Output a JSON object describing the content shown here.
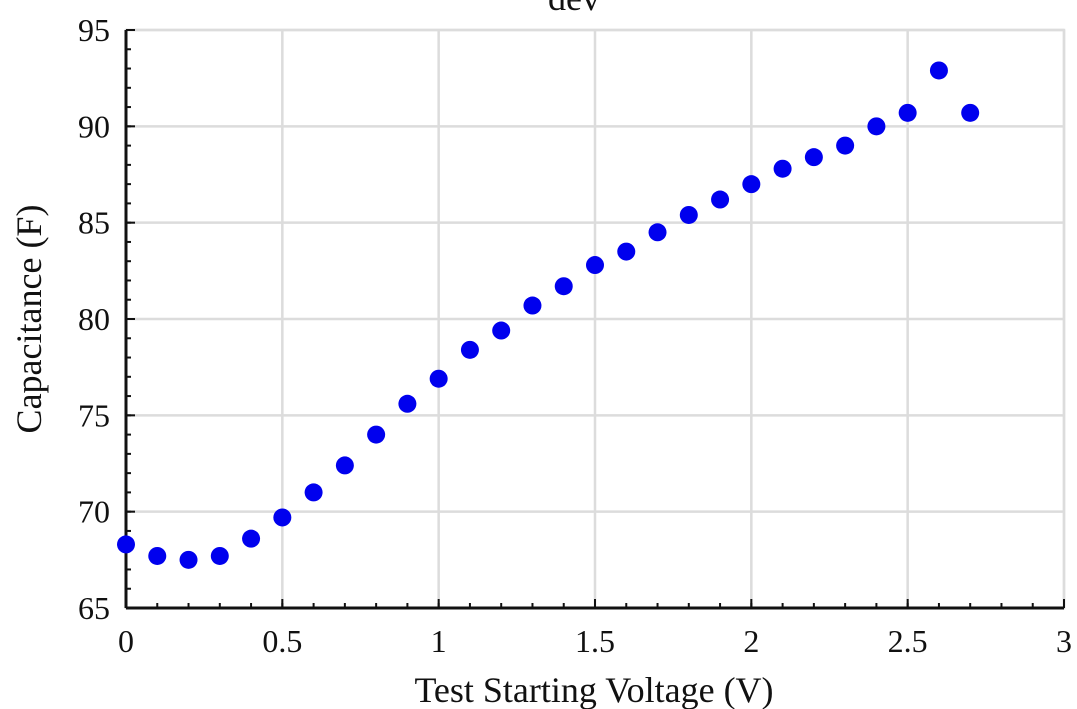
{
  "chart_data": {
    "type": "scatter",
    "title": "dev",
    "xlabel": "Test Starting Voltage (V)",
    "ylabel": "Capacitance (F)",
    "xlim": [
      0,
      3
    ],
    "ylim": [
      65,
      95
    ],
    "xticks": [
      "0",
      "0.5",
      "1",
      "1.5",
      "2",
      "2.5",
      "3"
    ],
    "yticks": [
      "65",
      "70",
      "75",
      "80",
      "85",
      "90",
      "95"
    ],
    "grid": true,
    "marker_color": "#0000ee",
    "series": [
      {
        "x": [
          0,
          0.1,
          0.2,
          0.3,
          0.4,
          0.5,
          0.6,
          0.7,
          0.8,
          0.9,
          1.0,
          1.1,
          1.2,
          1.3,
          1.4,
          1.5,
          1.6,
          1.7,
          1.8,
          1.9,
          2.0,
          2.1,
          2.2,
          2.3,
          2.4,
          2.5,
          2.6,
          2.7
        ],
        "y": [
          68.3,
          67.7,
          67.5,
          67.7,
          68.6,
          69.7,
          71.0,
          72.4,
          74.0,
          75.6,
          76.9,
          78.4,
          79.4,
          80.7,
          81.7,
          82.8,
          83.5,
          84.5,
          85.4,
          86.2,
          87.0,
          87.8,
          88.4,
          89.0,
          90.0,
          90.7,
          92.9,
          90.7
        ]
      }
    ]
  }
}
